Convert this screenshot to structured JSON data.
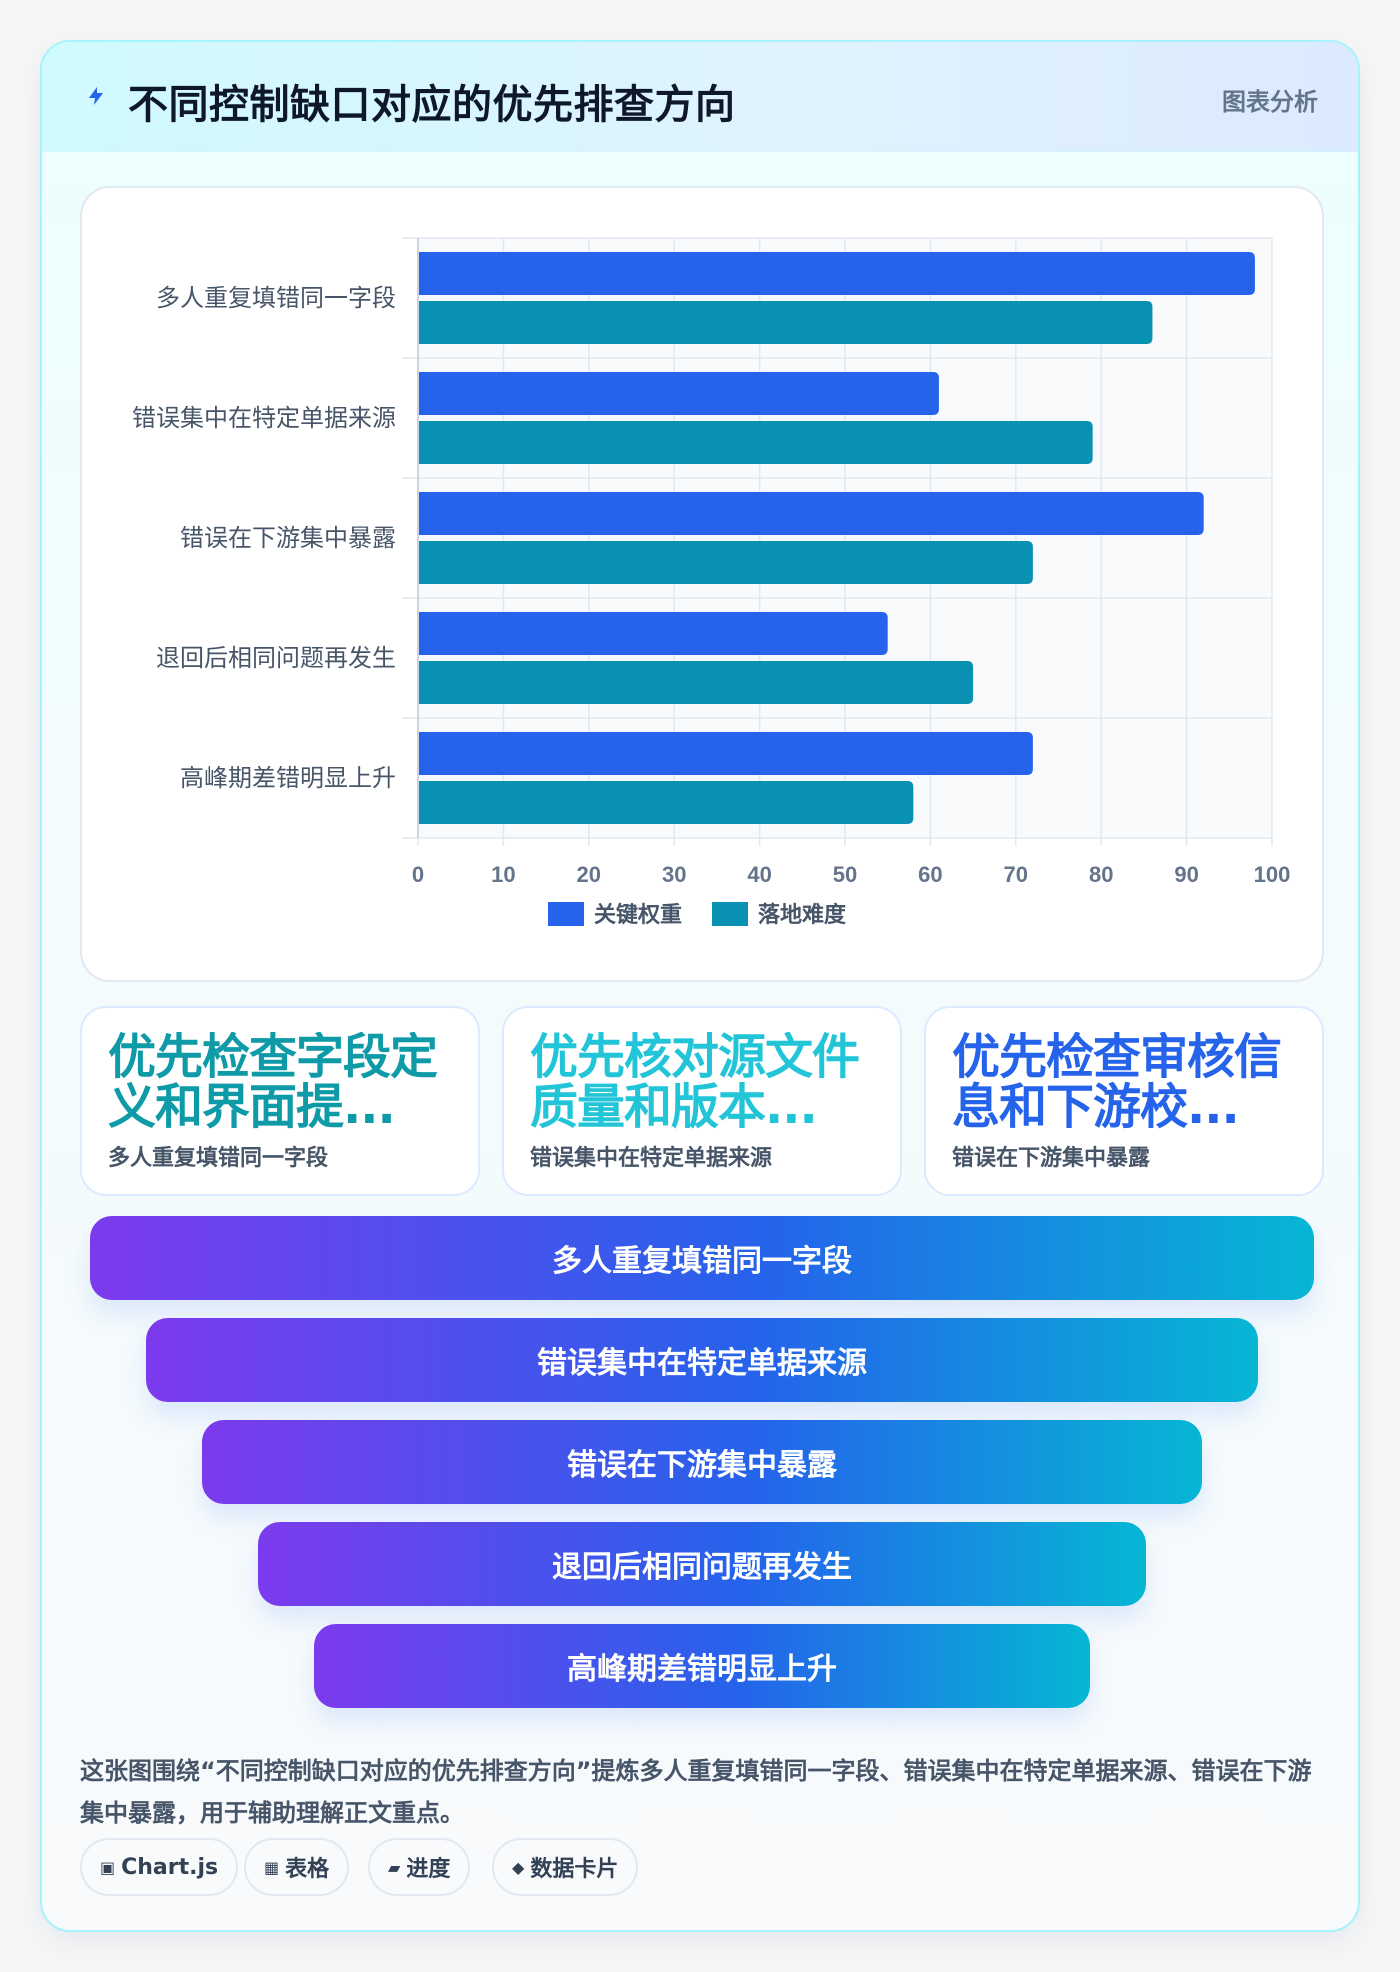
{
  "header": {
    "title": "不同控制缺口对应的优先排查方向",
    "tag": "图表分析",
    "icon": "lightning-icon"
  },
  "chart_data": {
    "type": "bar",
    "orientation": "horizontal",
    "categories": [
      "多人重复填错同一字段",
      "错误集中在特定单据来源",
      "错误在下游集中暴露",
      "退回后相同问题再发生",
      "高峰期差错明显上升"
    ],
    "series": [
      {
        "name": "关键权重",
        "color": "#2563eb",
        "values": [
          98,
          61,
          92,
          55,
          72
        ]
      },
      {
        "name": "落地难度",
        "color": "#0891b2",
        "values": [
          86,
          79,
          72,
          65,
          58
        ]
      }
    ],
    "xlim": [
      0,
      100
    ],
    "xticks": [
      0,
      10,
      20,
      30,
      40,
      50,
      60,
      70,
      80,
      90,
      100
    ],
    "grid": true,
    "legend_position": "bottom"
  },
  "kpis": [
    {
      "title": "优先检查字段定义和界面提...",
      "subtitle": "多人重复填错同一字段",
      "color": "#0e9aa7"
    },
    {
      "title": "优先核对源文件质量和版本...",
      "subtitle": "错误集中在特定单据来源",
      "color": "#22c5d8"
    },
    {
      "title": "优先检查审核信息和下游校...",
      "subtitle": "错误在下游集中暴露",
      "color": "#2563eb"
    }
  ],
  "funnel": [
    "多人重复填错同一字段",
    "错误集中在特定单据来源",
    "错误在下游集中暴露",
    "退回后相同问题再发生",
    "高峰期差错明显上升"
  ],
  "summary": "这张图围绕“不同控制缺口对应的优先排查方向”提炼多人重复填错同一字段、错误集中在特定单据来源、错误在下游集中暴露，用于辅助理解正文重点。",
  "chips": [
    {
      "icon": "▣",
      "label": "Chart.js"
    },
    {
      "icon": "▦",
      "label": "表格"
    },
    {
      "icon": "▰",
      "label": "进度"
    },
    {
      "icon": "◆",
      "label": "数据卡片"
    }
  ]
}
